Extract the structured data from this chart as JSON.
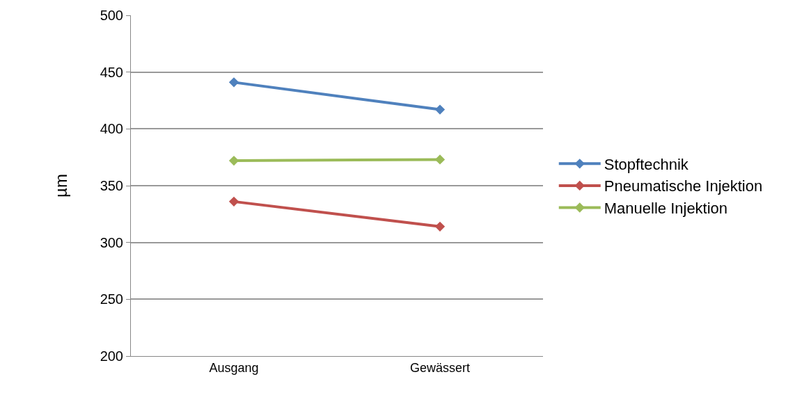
{
  "chart_data": {
    "type": "line",
    "ylabel": "µm",
    "categories": [
      "Ausgang",
      "Gewässert"
    ],
    "series": [
      {
        "name": "Stopftechnik",
        "color": "#4f81bd",
        "values": [
          441,
          417
        ]
      },
      {
        "name": "Pneumatische Injektion",
        "color": "#c0504d",
        "values": [
          336,
          314
        ]
      },
      {
        "name": "Manuelle Injektion",
        "color": "#9bbb59",
        "values": [
          372,
          373
        ]
      }
    ],
    "ylim": [
      200,
      500
    ],
    "yticks": [
      200,
      250,
      300,
      350,
      400,
      450,
      500
    ],
    "grid": "y",
    "legend": "right",
    "marker": "diamond",
    "line_style": "solid"
  }
}
